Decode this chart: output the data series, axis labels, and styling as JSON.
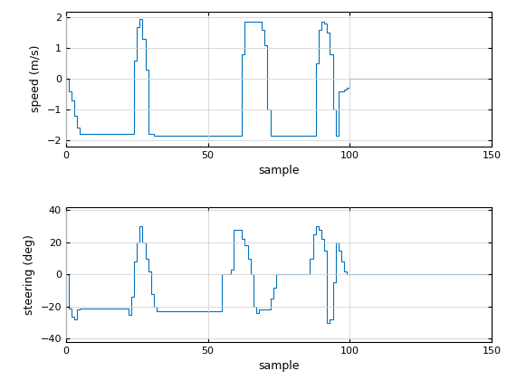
{
  "speed_data": [
    0.0,
    -0.4,
    -0.7,
    -1.2,
    -1.6,
    -1.8,
    -1.8,
    -1.8,
    -1.8,
    -1.8,
    -1.8,
    -1.8,
    -1.8,
    -1.8,
    -1.8,
    -1.8,
    -1.8,
    -1.8,
    -1.8,
    -1.8,
    -1.8,
    -1.8,
    -1.8,
    -1.8,
    0.6,
    1.7,
    1.95,
    1.3,
    0.3,
    -1.8,
    -1.8,
    -1.85,
    -1.85,
    -1.85,
    -1.85,
    -1.85,
    -1.85,
    -1.85,
    -1.85,
    -1.85,
    -1.85,
    -1.85,
    -1.85,
    -1.85,
    -1.85,
    -1.85,
    -1.85,
    -1.85,
    -1.85,
    -1.85,
    -1.85,
    -1.85,
    -1.85,
    -1.85,
    -1.85,
    -1.85,
    -1.85,
    -1.85,
    -1.85,
    -1.85,
    -1.85,
    -1.85,
    0.8,
    1.85,
    1.85,
    1.85,
    1.85,
    1.85,
    1.85,
    1.6,
    1.1,
    -1.0,
    -1.85,
    -1.85,
    -1.85,
    -1.85,
    -1.85,
    -1.85,
    -1.85,
    -1.85,
    -1.85,
    -1.85,
    -1.85,
    -1.85,
    -1.85,
    -1.85,
    -1.85,
    -1.85,
    0.5,
    1.6,
    1.85,
    1.8,
    1.5,
    0.8,
    -1.0,
    -1.85,
    -0.4,
    -0.4,
    -0.35,
    -0.3,
    0.0,
    0.0,
    0.0,
    0.0,
    0.0,
    0.0,
    0.0,
    0.0,
    0.0,
    0.0,
    0.0,
    0.0,
    0.0,
    0.0,
    0.0,
    0.0,
    0.0,
    0.0,
    0.0,
    0.0,
    0.0,
    0.0,
    0.0,
    0.0,
    0.0,
    0.0,
    0.0,
    0.0,
    0.0,
    0.0,
    0.0,
    0.0,
    0.0,
    0.0,
    0.0,
    0.0,
    0.0,
    0.0,
    0.0,
    0.0,
    0.0,
    0.0,
    0.0,
    0.0,
    0.0,
    0.0,
    0.0,
    0.0,
    0.0,
    0.0
  ],
  "steering_data": [
    0.0,
    -21,
    -26,
    -28,
    -22,
    -21,
    -21,
    -21,
    -21,
    -21,
    -21,
    -21,
    -21,
    -21,
    -21,
    -21,
    -21,
    -21,
    -21,
    -21,
    -21,
    -21,
    -25,
    -14,
    8,
    20,
    30,
    20,
    10,
    2,
    -12,
    -20,
    -23,
    -23,
    -23,
    -23,
    -23,
    -23,
    -23,
    -23,
    -23,
    -23,
    -23,
    -23,
    -23,
    -23,
    -23,
    -23,
    -23,
    -23,
    -23,
    -23,
    -23,
    -23,
    -23,
    0,
    0,
    0,
    3,
    28,
    28,
    28,
    22,
    18,
    10,
    0,
    -20,
    -24,
    -22,
    -22,
    -22,
    -22,
    -15,
    -8,
    0,
    0,
    0,
    0,
    0,
    0,
    0,
    0,
    0,
    0,
    0,
    0,
    10,
    25,
    30,
    28,
    22,
    15,
    -30,
    -28,
    -5,
    20,
    15,
    8,
    2,
    0,
    0,
    0,
    0,
    0,
    0,
    0,
    0,
    0,
    0,
    0,
    0,
    0,
    0,
    0,
    0,
    0,
    0,
    0,
    0,
    0,
    0,
    0,
    0,
    0,
    0,
    0,
    0,
    0,
    0,
    0,
    0,
    0,
    0,
    0,
    0,
    0,
    0,
    0,
    0,
    0,
    0,
    0,
    0,
    0,
    0,
    0,
    0,
    0,
    0,
    0
  ],
  "line_color": "#0072BD",
  "background_color": "#ffffff",
  "grid_color": "#d3d3d3",
  "speed_ylabel": "speed (m/s)",
  "steering_ylabel": "steering (deg)",
  "xlabel": "sample",
  "speed_ylim": [
    -2.2,
    2.2
  ],
  "steering_ylim": [
    -42,
    42
  ],
  "xlim": [
    0,
    150
  ],
  "speed_yticks": [
    -2,
    -1,
    0,
    1,
    2
  ],
  "steering_yticks": [
    -40,
    -20,
    0,
    20,
    40
  ],
  "xticks": [
    0,
    50,
    100,
    150
  ]
}
